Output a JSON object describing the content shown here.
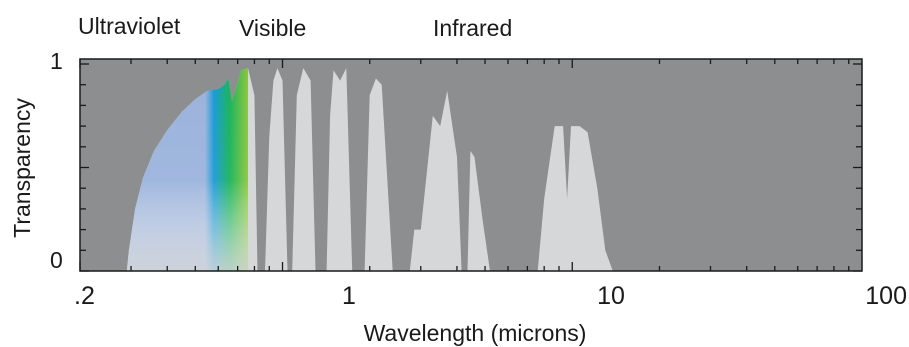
{
  "chart_data": {
    "type": "area",
    "band_labels": [
      "Ultraviolet",
      "Visible",
      "Infrared"
    ],
    "xlabel": "Wavelength (microns)",
    "ylabel": "Transparency",
    "x_scale": "log",
    "xlim": [
      0.2,
      100
    ],
    "ylim": [
      0,
      1
    ],
    "x_ticks": [
      {
        "value": 0.2,
        "label": ".2"
      },
      {
        "value": 1,
        "label": "1"
      },
      {
        "value": 10,
        "label": "10"
      },
      {
        "value": 100,
        "label": "100"
      }
    ],
    "y_ticks": [
      {
        "value": 0,
        "label": "0"
      },
      {
        "value": 1,
        "label": "1"
      }
    ],
    "grid": false,
    "visible_range": [
      0.39,
      0.76
    ],
    "colors": {
      "plot_background": "#8d8e90",
      "transmission_fill": "#d6d7d9",
      "axis": "#1a1a1a"
    },
    "series": [
      {
        "points": [
          [
            0.29,
            0.0
          ],
          [
            0.295,
            0.1
          ],
          [
            0.31,
            0.3
          ],
          [
            0.33,
            0.45
          ],
          [
            0.36,
            0.58
          ],
          [
            0.4,
            0.68
          ],
          [
            0.45,
            0.77
          ],
          [
            0.5,
            0.83
          ],
          [
            0.55,
            0.87
          ],
          [
            0.6,
            0.88
          ],
          [
            0.63,
            0.9
          ],
          [
            0.65,
            0.93
          ],
          [
            0.67,
            0.82
          ],
          [
            0.69,
            0.88
          ],
          [
            0.72,
            0.97
          ],
          [
            0.76,
            0.98
          ],
          [
            0.8,
            0.85
          ],
          [
            0.82,
            0.0
          ],
          [
            0.87,
            0.0
          ],
          [
            0.9,
            0.65
          ],
          [
            0.93,
            0.92
          ],
          [
            0.96,
            0.98
          ],
          [
            1.0,
            0.92
          ],
          [
            1.04,
            0.0
          ],
          [
            1.08,
            0.0
          ],
          [
            1.12,
            0.85
          ],
          [
            1.18,
            0.98
          ],
          [
            1.25,
            0.92
          ],
          [
            1.3,
            0.0
          ],
          [
            1.42,
            0.0
          ],
          [
            1.46,
            0.75
          ],
          [
            1.5,
            0.97
          ],
          [
            1.58,
            0.92
          ],
          [
            1.66,
            0.98
          ],
          [
            1.74,
            0.0
          ],
          [
            1.92,
            0.0
          ],
          [
            2.0,
            0.85
          ],
          [
            2.1,
            0.93
          ],
          [
            2.2,
            0.9
          ],
          [
            2.4,
            0.0
          ],
          [
            2.75,
            0.0
          ],
          [
            2.85,
            0.2
          ],
          [
            3.0,
            0.2
          ],
          [
            3.3,
            0.75
          ],
          [
            3.5,
            0.7
          ],
          [
            3.7,
            0.87
          ],
          [
            4.0,
            0.55
          ],
          [
            4.15,
            0.0
          ],
          [
            4.35,
            0.0
          ],
          [
            4.45,
            0.58
          ],
          [
            4.6,
            0.55
          ],
          [
            4.9,
            0.25
          ],
          [
            5.2,
            0.0
          ],
          [
            7.6,
            0.0
          ],
          [
            8.0,
            0.35
          ],
          [
            8.7,
            0.7
          ],
          [
            9.3,
            0.7
          ],
          [
            9.6,
            0.35
          ],
          [
            9.9,
            0.7
          ],
          [
            10.6,
            0.7
          ],
          [
            11.3,
            0.67
          ],
          [
            12.2,
            0.4
          ],
          [
            13.0,
            0.1
          ],
          [
            13.8,
            0.0
          ]
        ]
      }
    ]
  }
}
